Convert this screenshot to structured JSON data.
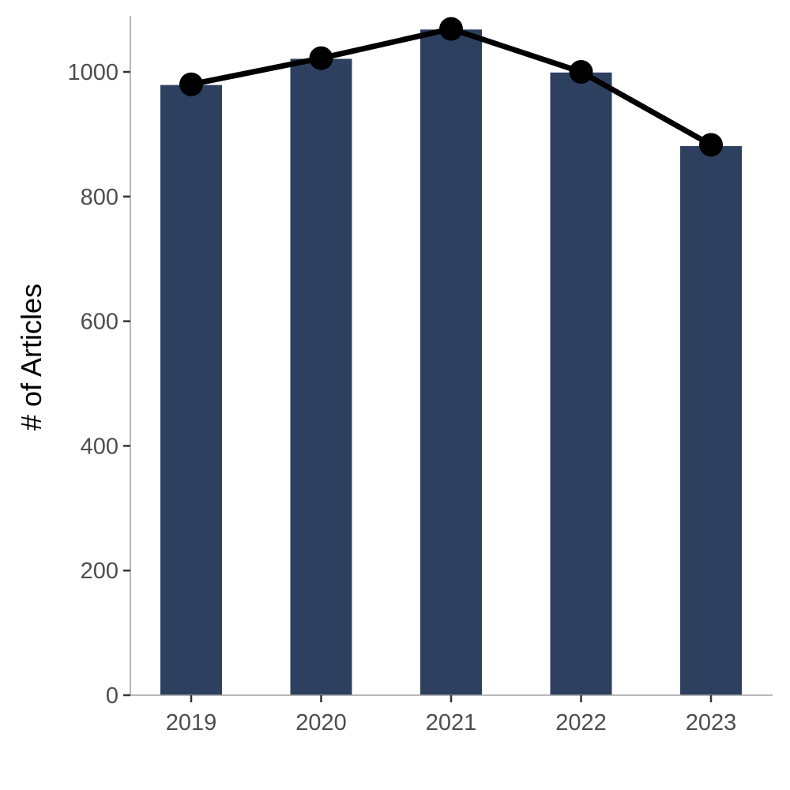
{
  "chart_data": {
    "type": "bar",
    "categories": [
      "2019",
      "2020",
      "2021",
      "2022",
      "2023"
    ],
    "values": [
      979,
      1021,
      1068,
      999,
      881
    ],
    "line_values": [
      980,
      1022,
      1069,
      1000,
      883
    ],
    "title": "",
    "xlabel": "",
    "ylabel": "# of Articles",
    "ylim": [
      0,
      1090
    ],
    "yticks": [
      "0",
      "200",
      "400",
      "600",
      "800",
      "1000"
    ],
    "bar_color": "#2e4060",
    "line_color": "#000000",
    "point_color": "#000000",
    "grid": false,
    "legend": "none"
  }
}
